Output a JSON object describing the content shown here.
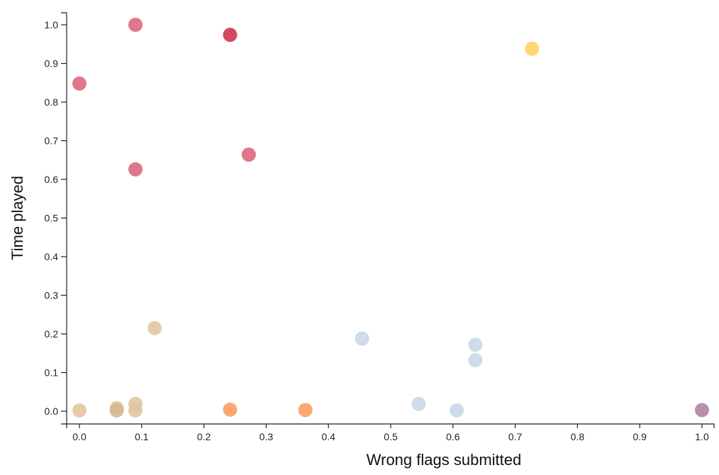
{
  "chart_data": {
    "type": "scatter",
    "title": "",
    "xlabel": "Wrong flags submitted",
    "ylabel": "Time played",
    "xlim": [
      0,
      1
    ],
    "ylim": [
      0,
      1
    ],
    "x_ticks": [
      "0.0",
      "0.1",
      "0.2",
      "0.3",
      "0.4",
      "0.5",
      "0.6",
      "0.7",
      "0.8",
      "0.9",
      "1.0"
    ],
    "y_ticks": [
      "0.0",
      "0.1",
      "0.2",
      "0.3",
      "0.4",
      "0.5",
      "0.6",
      "0.7",
      "0.8",
      "0.9",
      "1.0"
    ],
    "grid": false,
    "legend": "none",
    "points": [
      {
        "x": 0.09,
        "y": 1.0,
        "color": "#db5f78"
      },
      {
        "x": 0.242,
        "y": 0.974,
        "color": "#cc2944"
      },
      {
        "x": 0.0,
        "y": 0.848,
        "color": "#db5f78"
      },
      {
        "x": 0.272,
        "y": 0.664,
        "color": "#db5f78"
      },
      {
        "x": 0.09,
        "y": 0.626,
        "color": "#db5f78"
      },
      {
        "x": 0.727,
        "y": 0.938,
        "color": "#ffd15c"
      },
      {
        "x": 0.121,
        "y": 0.215,
        "color": "#dfc39c"
      },
      {
        "x": 0.0,
        "y": 0.002,
        "color": "#dfc39c"
      },
      {
        "x": 0.06,
        "y": 0.008,
        "color": "#dfc39c"
      },
      {
        "x": 0.06,
        "y": 0.002,
        "color": "#d5b68a"
      },
      {
        "x": 0.09,
        "y": 0.019,
        "color": "#dfc39c"
      },
      {
        "x": 0.09,
        "y": 0.002,
        "color": "#dfc39c"
      },
      {
        "x": 0.242,
        "y": 0.004,
        "color": "#fd9957"
      },
      {
        "x": 0.363,
        "y": 0.003,
        "color": "#fd9957"
      },
      {
        "x": 0.454,
        "y": 0.188,
        "color": "#c5d5e6"
      },
      {
        "x": 0.545,
        "y": 0.019,
        "color": "#c5d5e6"
      },
      {
        "x": 0.606,
        "y": 0.002,
        "color": "#c5d5e6"
      },
      {
        "x": 0.636,
        "y": 0.172,
        "color": "#c5d5e6"
      },
      {
        "x": 0.636,
        "y": 0.132,
        "color": "#c5d5e6"
      },
      {
        "x": 1.0,
        "y": 0.003,
        "color": "#ab7ba1"
      }
    ]
  }
}
